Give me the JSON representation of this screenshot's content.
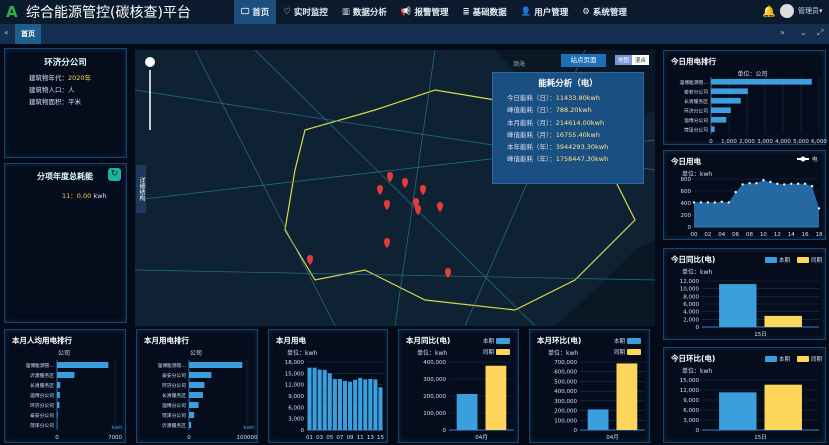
{
  "header": {
    "title": "综合能源管控(碳核查)平台",
    "logo_text": "A",
    "nav": [
      {
        "label": "首页",
        "icon": "monitor-icon",
        "active": true
      },
      {
        "label": "实时监控",
        "icon": "heartbeat-icon"
      },
      {
        "label": "数据分析",
        "icon": "bar-chart-icon"
      },
      {
        "label": "报警管理",
        "icon": "bullhorn-icon"
      },
      {
        "label": "基础数据",
        "icon": "database-icon"
      },
      {
        "label": "用户管理",
        "icon": "user-icon"
      },
      {
        "label": "系统管理",
        "icon": "gears-icon"
      }
    ],
    "user": "管理员"
  },
  "tabs": {
    "active": "首页"
  },
  "company": {
    "name": "环济分公司",
    "year_label": "建筑物年代：",
    "year": "2020年",
    "people_label": "建筑物人口：",
    "people": "人",
    "area_label": "建筑物面积：",
    "area": "平米"
  },
  "yearly": {
    "title": "分项年度总耗能",
    "item": "11：",
    "value": "0.00",
    "unit": "kwh"
  },
  "map": {
    "site_button": "站点页面",
    "toggle": [
      "地图",
      "混合"
    ],
    "structure": "详细结构",
    "sea_label": "渤海",
    "info": {
      "title": "能耗分析（电）",
      "rows": [
        {
          "label": "今日能耗（日）：",
          "value": "11433.80kwh"
        },
        {
          "label": "峰值能耗（日）：",
          "value": "788.20kwh"
        },
        {
          "label": "本月能耗（月）：",
          "value": "214614.00kwh"
        },
        {
          "label": "峰值能耗（月）：",
          "value": "16755.40kwh"
        },
        {
          "label": "本年能耗（年）：",
          "value": "3944293.30kwh"
        },
        {
          "label": "峰值能耗（年）：",
          "value": "1758447.30kwh"
        }
      ]
    }
  },
  "colors": {
    "blue": "#3a9fdc",
    "yellow": "#ffd65c"
  },
  "chart_data": [
    {
      "id": "today_rank",
      "type": "bar",
      "orientation": "horizontal",
      "title": "今日用电排行",
      "unit": "单位：公司",
      "categories": [
        "淄博能源管...",
        "泰安分公司",
        "长清服务区",
        "环济分公司",
        "淄博分公司",
        "菏泽分公司"
      ],
      "values": [
        5600,
        2050,
        1650,
        1100,
        850,
        200
      ],
      "xlim": [
        0,
        6000
      ],
      "xticks": [
        "0",
        "1,000",
        "2,000",
        "3,000",
        "4,000",
        "5,000",
        "6,000"
      ]
    },
    {
      "id": "today_power",
      "type": "area",
      "title": "今日用电",
      "unit": "单位：kwh",
      "legend": "电",
      "x": [
        "00",
        "01",
        "02",
        "03",
        "04",
        "05",
        "06",
        "07",
        "08",
        "09",
        "10",
        "11",
        "12",
        "13",
        "14",
        "15",
        "16",
        "17",
        "18"
      ],
      "values": [
        410,
        410,
        410,
        410,
        420,
        410,
        580,
        710,
        730,
        730,
        780,
        750,
        720,
        710,
        720,
        720,
        720,
        680,
        310
      ],
      "ylim": [
        0,
        800
      ],
      "yticks": [
        "0",
        "200",
        "400",
        "600",
        "800"
      ],
      "xticks": [
        "00",
        "02",
        "04",
        "06",
        "08",
        "10",
        "12",
        "14",
        "16",
        "18"
      ]
    },
    {
      "id": "today_yoy",
      "type": "bar",
      "title": "今日同比(电)",
      "unit": "单位：kwh",
      "legend": [
        "本期",
        "同期"
      ],
      "categories": [
        "15日"
      ],
      "series": [
        {
          "name": "本期",
          "values": [
            11200
          ]
        },
        {
          "name": "同期",
          "values": [
            2900
          ]
        }
      ],
      "ylim": [
        0,
        12000
      ],
      "yticks": [
        "0",
        "2,000",
        "4,000",
        "6,000",
        "8,000",
        "10,000",
        "12,000"
      ]
    },
    {
      "id": "today_mom",
      "type": "bar",
      "title": "今日环比(电)",
      "unit": "单位：kwh",
      "legend": [
        "本期",
        "同期"
      ],
      "categories": [
        "15日"
      ],
      "series": [
        {
          "name": "本期",
          "values": [
            11300
          ]
        },
        {
          "name": "同期",
          "values": [
            13600
          ]
        }
      ],
      "ylim": [
        0,
        15000
      ],
      "yticks": [
        "0",
        "3,000",
        "6,000",
        "9,000",
        "12,000",
        "15,000"
      ]
    },
    {
      "id": "month_percap_rank",
      "type": "bar",
      "orientation": "horizontal",
      "title": "本月人均用电排行",
      "unit": "公司",
      "axis_unit": "kwh",
      "categories": [
        "淄博能源管...",
        "沂源服务区",
        "长清服务区",
        "淄博分公司",
        "环济分公司",
        "泰安分公司",
        "菏泽分公司"
      ],
      "values": [
        6200,
        2100,
        400,
        350,
        300,
        100,
        50
      ],
      "xlim": [
        0,
        7000
      ],
      "xticks": [
        "0",
        "7000"
      ]
    },
    {
      "id": "month_rank",
      "type": "bar",
      "orientation": "horizontal",
      "title": "本月用电排行",
      "unit": "公司",
      "axis_unit": "kwh",
      "categories": [
        "淄博能源管...",
        "泰安分公司",
        "环济分公司",
        "长清服务区",
        "淄博分公司",
        "菏泽分公司",
        "沂源服务区"
      ],
      "values": [
        92000,
        38600,
        26600,
        24000,
        16500,
        8900,
        3800
      ],
      "xlim": [
        0,
        100000
      ],
      "xticks": [
        "0",
        "100000"
      ]
    },
    {
      "id": "month_power",
      "type": "bar",
      "title": "本月用电",
      "unit": "单位：kwh",
      "categories": [
        "01",
        "02",
        "03",
        "04",
        "05",
        "06",
        "07",
        "08",
        "09",
        "10",
        "11",
        "12",
        "13",
        "14",
        "15"
      ],
      "values": [
        16500,
        16500,
        16000,
        15900,
        15000,
        13500,
        13500,
        13000,
        12800,
        13300,
        13800,
        13400,
        13500,
        13400,
        11300
      ],
      "ylim": [
        0,
        18000
      ],
      "yticks": [
        "0",
        "3,000",
        "6,000",
        "9,000",
        "12,000",
        "15,000",
        "18,000"
      ],
      "xticks": [
        "01",
        "03",
        "05",
        "07",
        "09",
        "11",
        "13",
        "15"
      ]
    },
    {
      "id": "month_yoy",
      "type": "bar",
      "title": "本月同比(电)",
      "unit": "单位：kwh",
      "legend": [
        "本期",
        "同期"
      ],
      "categories": [
        "04月"
      ],
      "series": [
        {
          "name": "本期",
          "values": [
            212000
          ]
        },
        {
          "name": "同期",
          "values": [
            378000
          ]
        }
      ],
      "ylim": [
        0,
        400000
      ],
      "yticks": [
        "0",
        "100,000",
        "200,000",
        "300,000",
        "400,000"
      ]
    },
    {
      "id": "month_mom",
      "type": "bar",
      "title": "本月环比(电)",
      "unit": "单位：kwh",
      "legend": [
        "本期",
        "同期"
      ],
      "categories": [
        "04月"
      ],
      "series": [
        {
          "name": "本期",
          "values": [
            212000
          ]
        },
        {
          "name": "同期",
          "values": [
            685000
          ]
        }
      ],
      "ylim": [
        0,
        700000
      ],
      "yticks": [
        "0",
        "100,000",
        "200,000",
        "300,000",
        "400,000",
        "500,000",
        "600,000",
        "700,000"
      ]
    }
  ]
}
